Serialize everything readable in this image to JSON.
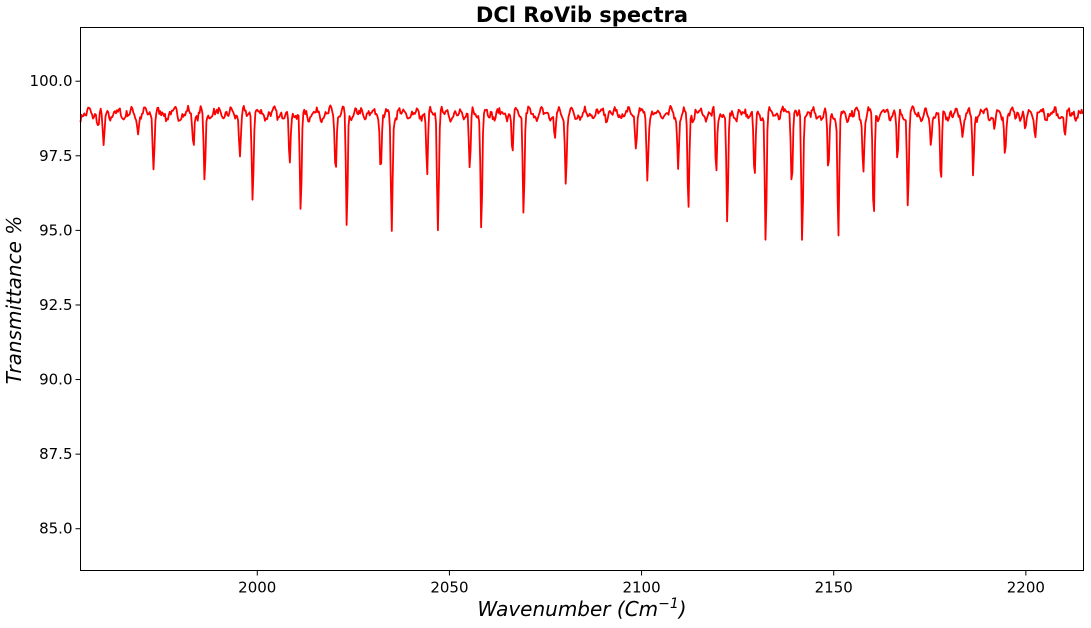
{
  "chart_data": {
    "type": "line",
    "title": "DCl RoVib spectra",
    "xlabel": "Wavenumber",
    "xlabel_unit": "(Cm",
    "xlabel_unit_sup": "−1",
    "xlabel_unit_close": ")",
    "ylabel": "Transmittance %",
    "xlim": [
      1954,
      2215
    ],
    "ylim": [
      83.6,
      101.8
    ],
    "x_ticks": [
      2000,
      2050,
      2100,
      2150,
      2200
    ],
    "x_tick_labels": [
      "2000",
      "2050",
      "2100",
      "2150",
      "2200"
    ],
    "y_ticks": [
      85.0,
      87.5,
      90.0,
      92.5,
      95.0,
      97.5,
      100.0
    ],
    "y_tick_labels": [
      "85.0",
      "87.5",
      "90.0",
      "92.5",
      "95.0",
      "97.5",
      "100.0"
    ],
    "grid": false,
    "color": "#ff0000",
    "baseline": 98.9,
    "absorption_lines": [
      {
        "x": 1958.6,
        "y": 98.6
      },
      {
        "x": 1960.0,
        "y": 97.7
      },
      {
        "x": 1969.0,
        "y": 98.3
      },
      {
        "x": 1973.0,
        "y": 97.2
      },
      {
        "x": 1983.4,
        "y": 97.9
      },
      {
        "x": 1986.3,
        "y": 96.7
      },
      {
        "x": 1995.5,
        "y": 97.5
      },
      {
        "x": 1998.8,
        "y": 96.2
      },
      {
        "x": 2008.4,
        "y": 97.2
      },
      {
        "x": 2011.3,
        "y": 95.5
      },
      {
        "x": 2020.4,
        "y": 97.0
      },
      {
        "x": 2023.3,
        "y": 95.1
      },
      {
        "x": 2032.1,
        "y": 97.0
      },
      {
        "x": 2035.0,
        "y": 94.9
      },
      {
        "x": 2044.2,
        "y": 96.9
      },
      {
        "x": 2047.0,
        "y": 95.1
      },
      {
        "x": 2055.3,
        "y": 97.0
      },
      {
        "x": 2058.3,
        "y": 95.2
      },
      {
        "x": 2066.4,
        "y": 97.6
      },
      {
        "x": 2069.3,
        "y": 95.6
      },
      {
        "x": 2077.4,
        "y": 98.0
      },
      {
        "x": 2080.3,
        "y": 96.6
      },
      {
        "x": 2098.5,
        "y": 97.9
      },
      {
        "x": 2101.5,
        "y": 96.7
      },
      {
        "x": 2109.5,
        "y": 97.2
      },
      {
        "x": 2112.2,
        "y": 95.6
      },
      {
        "x": 2119.4,
        "y": 96.9
      },
      {
        "x": 2122.3,
        "y": 95.1
      },
      {
        "x": 2129.4,
        "y": 96.7
      },
      {
        "x": 2132.3,
        "y": 94.7
      },
      {
        "x": 2139.1,
        "y": 96.7
      },
      {
        "x": 2141.8,
        "y": 94.5
      },
      {
        "x": 2148.6,
        "y": 96.9
      },
      {
        "x": 2151.2,
        "y": 94.6
      },
      {
        "x": 2157.7,
        "y": 97.0
      },
      {
        "x": 2160.4,
        "y": 95.3
      },
      {
        "x": 2166.6,
        "y": 97.3
      },
      {
        "x": 2169.3,
        "y": 95.8
      },
      {
        "x": 2175.3,
        "y": 97.7
      },
      {
        "x": 2177.9,
        "y": 96.5
      },
      {
        "x": 2183.5,
        "y": 98.1
      },
      {
        "x": 2186.3,
        "y": 96.9
      },
      {
        "x": 2191.8,
        "y": 98.4
      },
      {
        "x": 2194.6,
        "y": 97.5
      },
      {
        "x": 2199.8,
        "y": 98.3
      },
      {
        "x": 2202.5,
        "y": 98.1
      },
      {
        "x": 2210.2,
        "y": 98.2
      }
    ]
  }
}
